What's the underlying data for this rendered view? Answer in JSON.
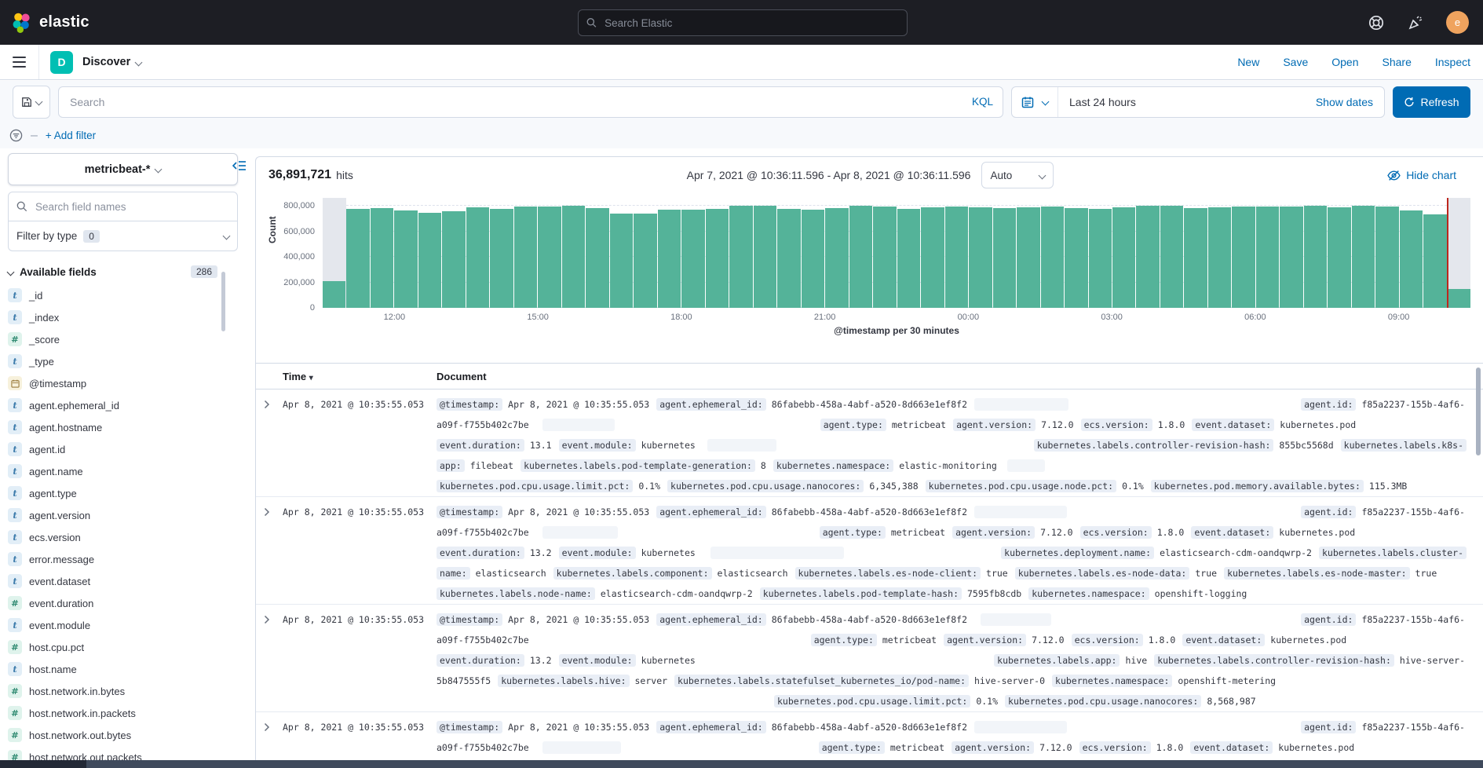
{
  "colors": {
    "accent": "#006bb4",
    "bar": "#54b399",
    "time_marker": "#bd271e",
    "app_badge": "#00bfb3",
    "avatar": "#efa35e"
  },
  "header": {
    "brand": "elastic",
    "search_placeholder": "Search Elastic",
    "avatar_initial": "e"
  },
  "nav": {
    "app_badge": "D",
    "title": "Discover",
    "actions": {
      "new": "New",
      "save": "Save",
      "open": "Open",
      "share": "Share",
      "inspect": "Inspect"
    }
  },
  "querybar": {
    "search_placeholder": "Search",
    "kql_label": "KQL",
    "time_range": "Last 24 hours",
    "show_dates_label": "Show dates",
    "refresh_label": "Refresh"
  },
  "filterbar": {
    "add_filter_label": "+ Add filter"
  },
  "sidebar": {
    "index_pattern": "metricbeat-*",
    "field_search_placeholder": "Search field names",
    "filter_by_type_label": "Filter by type",
    "filter_by_type_count": "0",
    "available_fields_label": "Available fields",
    "available_fields_count": "286",
    "fields": [
      {
        "name": "_id",
        "type": "string"
      },
      {
        "name": "_index",
        "type": "string"
      },
      {
        "name": "_score",
        "type": "number"
      },
      {
        "name": "_type",
        "type": "string"
      },
      {
        "name": "@timestamp",
        "type": "date"
      },
      {
        "name": "agent.ephemeral_id",
        "type": "string"
      },
      {
        "name": "agent.hostname",
        "type": "string"
      },
      {
        "name": "agent.id",
        "type": "string"
      },
      {
        "name": "agent.name",
        "type": "string"
      },
      {
        "name": "agent.type",
        "type": "string"
      },
      {
        "name": "agent.version",
        "type": "string"
      },
      {
        "name": "ecs.version",
        "type": "string"
      },
      {
        "name": "error.message",
        "type": "string"
      },
      {
        "name": "event.dataset",
        "type": "string"
      },
      {
        "name": "event.duration",
        "type": "number"
      },
      {
        "name": "event.module",
        "type": "string"
      },
      {
        "name": "host.cpu.pct",
        "type": "number"
      },
      {
        "name": "host.name",
        "type": "string"
      },
      {
        "name": "host.network.in.bytes",
        "type": "number"
      },
      {
        "name": "host.network.in.packets",
        "type": "number"
      },
      {
        "name": "host.network.out.bytes",
        "type": "number"
      },
      {
        "name": "host.network.out.packets",
        "type": "number"
      }
    ]
  },
  "results": {
    "hits_value": "36,891,721",
    "hits_label": "hits",
    "date_range": "Apr 7, 2021 @ 10:36:11.596 - Apr 8, 2021 @ 10:36:11.596",
    "interval_label": "Auto",
    "hide_chart_label": "Hide chart"
  },
  "chart_data": {
    "type": "bar",
    "ylabel": "Count",
    "caption": "@timestamp per 30 minutes",
    "bucket_interval": "30 minutes",
    "ylim": [
      0,
      862000
    ],
    "yticks": [
      0,
      200000,
      400000,
      600000,
      800000
    ],
    "ytick_labels": [
      "0",
      "200,000",
      "400,000",
      "600,000",
      "800,000"
    ],
    "xtick_labels": [
      "12:00",
      "15:00",
      "18:00",
      "21:00",
      "00:00",
      "03:00",
      "06:00",
      "09:00"
    ],
    "xtick_buckets": [
      3,
      9,
      15,
      21,
      27,
      33,
      39,
      45
    ],
    "values": [
      210000,
      775000,
      781000,
      762000,
      747000,
      757000,
      791000,
      778000,
      793000,
      795000,
      801000,
      783000,
      741000,
      737000,
      768000,
      772000,
      778000,
      801000,
      800000,
      777000,
      772000,
      782000,
      800000,
      796000,
      778000,
      788000,
      795000,
      790000,
      783000,
      786000,
      793000,
      781000,
      776000,
      790000,
      800000,
      798000,
      781000,
      788000,
      796000,
      792000,
      795000,
      798000,
      790000,
      800000,
      793000,
      762000,
      730000,
      150000
    ],
    "incomplete_buckets": [
      0,
      47
    ],
    "current_time_marker_bucket": 47
  },
  "table": {
    "time_header": "Time",
    "document_header": "Document",
    "rows": [
      {
        "time": "Apr 8, 2021 @ 10:35:55.053",
        "lines": [
          {
            "segs": [
              [
                "c",
                "@timestamp:"
              ],
              [
                "v",
                "Apr 8, 2021 @ 10:35:55.053"
              ],
              [
                "c",
                "agent.ephemeral_id:"
              ],
              [
                "v",
                "86fabebb-458a-4abf-a520-8d663e1ef8f2"
              ],
              [
                "g",
                120
              ],
              [
                "f"
              ],
              [
                "c",
                "agent.id:"
              ],
              [
                "v",
                "f85a2237-155b-4af6-"
              ]
            ]
          },
          {
            "segs": [
              [
                "v",
                "a09f-f755b402c7be"
              ],
              [
                "s",
                8
              ],
              [
                "g",
                92
              ],
              [
                "s",
                255
              ],
              [
                "c",
                "agent.type:"
              ],
              [
                "v",
                "metricbeat"
              ],
              [
                "c",
                "agent.version:"
              ],
              [
                "v",
                "7.12.0"
              ],
              [
                "c",
                "ecs.version:"
              ],
              [
                "v",
                "1.8.0"
              ],
              [
                "c",
                "event.dataset:"
              ],
              [
                "v",
                "kubernetes.pod"
              ]
            ]
          },
          {
            "segs": [
              [
                "c",
                "event.duration:"
              ],
              [
                "v",
                "13.1"
              ],
              [
                "c",
                "event.module:"
              ],
              [
                "v",
                "kubernetes"
              ],
              [
                "s",
                6
              ],
              [
                "g",
                88
              ],
              [
                "f"
              ],
              [
                "c",
                "kubernetes.labels.controller-revision-hash:"
              ],
              [
                "v",
                "855bc5568d"
              ],
              [
                "c",
                "kubernetes.labels.k8s-"
              ]
            ]
          },
          {
            "segs": [
              [
                "c",
                "app:"
              ],
              [
                "v",
                "filebeat"
              ],
              [
                "c",
                "kubernetes.labels.pod-template-generation:"
              ],
              [
                "v",
                "8"
              ],
              [
                "c",
                "kubernetes.namespace:"
              ],
              [
                "v",
                "elastic-monitoring"
              ],
              [
                "s",
                4
              ],
              [
                "g",
                48
              ]
            ]
          },
          {
            "segs": [
              [
                "c",
                "kubernetes.pod.cpu.usage.limit.pct:"
              ],
              [
                "v",
                "0.1%"
              ],
              [
                "c",
                "kubernetes.pod.cpu.usage.nanocores:"
              ],
              [
                "v",
                "6,345,388"
              ],
              [
                "c",
                "kubernetes.pod.cpu.usage.node.pct:"
              ],
              [
                "v",
                "0.1%"
              ],
              [
                "c",
                "kubernetes.pod.memory.available.bytes:"
              ],
              [
                "v",
                "115.3MB"
              ]
            ]
          }
        ]
      },
      {
        "time": "Apr 8, 2021 @ 10:35:55.053",
        "lines": [
          {
            "segs": [
              [
                "c",
                "@timestamp:"
              ],
              [
                "v",
                "Apr 8, 2021 @ 10:35:55.053"
              ],
              [
                "c",
                "agent.ephemeral_id:"
              ],
              [
                "v",
                "86fabebb-458a-4abf-a520-8d663e1ef8f2"
              ],
              [
                "g",
                118
              ],
              [
                "f"
              ],
              [
                "c",
                "agent.id:"
              ],
              [
                "v",
                "f85a2237-155b-4af6-"
              ]
            ]
          },
          {
            "segs": [
              [
                "v",
                "a09f-f755b402c7be"
              ],
              [
                "s",
                8
              ],
              [
                "g",
                96
              ],
              [
                "s",
                250
              ],
              [
                "c",
                "agent.type:"
              ],
              [
                "v",
                "metricbeat"
              ],
              [
                "c",
                "agent.version:"
              ],
              [
                "v",
                "7.12.0"
              ],
              [
                "c",
                "ecs.version:"
              ],
              [
                "v",
                "1.8.0"
              ],
              [
                "c",
                "event.dataset:"
              ],
              [
                "v",
                "kubernetes.pod"
              ]
            ]
          },
          {
            "segs": [
              [
                "c",
                "event.duration:"
              ],
              [
                "v",
                "13.2"
              ],
              [
                "c",
                "event.module:"
              ],
              [
                "v",
                "kubernetes"
              ],
              [
                "s",
                10
              ],
              [
                "g",
                170
              ],
              [
                "f"
              ],
              [
                "c",
                "kubernetes.deployment.name:"
              ],
              [
                "v",
                "elasticsearch-cdm-oandqwrp-2"
              ],
              [
                "c",
                "kubernetes.labels.cluster-"
              ]
            ]
          },
          {
            "segs": [
              [
                "c",
                "name:"
              ],
              [
                "v",
                "elasticsearch"
              ],
              [
                "c",
                "kubernetes.labels.component:"
              ],
              [
                "v",
                "elasticsearch"
              ],
              [
                "c",
                "kubernetes.labels.es-node-client:"
              ],
              [
                "v",
                "true"
              ],
              [
                "c",
                "kubernetes.labels.es-node-data:"
              ],
              [
                "v",
                "true"
              ],
              [
                "c",
                "kubernetes.labels.es-node-master:"
              ],
              [
                "v",
                "true"
              ]
            ]
          },
          {
            "segs": [
              [
                "c",
                "kubernetes.labels.node-name:"
              ],
              [
                "v",
                "elasticsearch-cdm-oandqwrp-2"
              ],
              [
                "c",
                "kubernetes.labels.pod-template-hash:"
              ],
              [
                "v",
                "7595fb8cdb"
              ],
              [
                "c",
                "kubernetes.namespace:"
              ],
              [
                "v",
                "openshift-logging"
              ]
            ]
          }
        ]
      },
      {
        "time": "Apr 8, 2021 @ 10:35:55.053",
        "lines": [
          {
            "segs": [
              [
                "c",
                "@timestamp:"
              ],
              [
                "v",
                "Apr 8, 2021 @ 10:35:55.053"
              ],
              [
                "c",
                "agent.ephemeral_id:"
              ],
              [
                "v",
                "86fabebb-458a-4abf-a520-8d663e1ef8f2"
              ],
              [
                "s",
                8
              ],
              [
                "g",
                90
              ],
              [
                "f"
              ],
              [
                "c",
                "agent.id:"
              ],
              [
                "v",
                "f85a2237-155b-4af6-"
              ]
            ]
          },
          {
            "segs": [
              [
                "v",
                "a09f-f755b402c7be"
              ],
              [
                "s",
                350
              ],
              [
                "c",
                "agent.type:"
              ],
              [
                "v",
                "metricbeat"
              ],
              [
                "c",
                "agent.version:"
              ],
              [
                "v",
                "7.12.0"
              ],
              [
                "c",
                "ecs.version:"
              ],
              [
                "v",
                "1.8.0"
              ],
              [
                "c",
                "event.dataset:"
              ],
              [
                "v",
                "kubernetes.pod"
              ]
            ]
          },
          {
            "segs": [
              [
                "c",
                "event.duration:"
              ],
              [
                "v",
                "13.2"
              ],
              [
                "c",
                "event.module:"
              ],
              [
                "v",
                "kubernetes"
              ],
              [
                "f"
              ],
              [
                "c",
                "kubernetes.labels.app:"
              ],
              [
                "v",
                "hive"
              ],
              [
                "c",
                "kubernetes.labels.controller-revision-hash:"
              ],
              [
                "v",
                "hive-server-"
              ]
            ]
          },
          {
            "segs": [
              [
                "v",
                "5b847555f5"
              ],
              [
                "c",
                "kubernetes.labels.hive:"
              ],
              [
                "v",
                "server"
              ],
              [
                "c",
                "kubernetes.labels.statefulset_kubernetes_io/pod-name:"
              ],
              [
                "v",
                "hive-server-0"
              ],
              [
                "c",
                "kubernetes.namespace:"
              ],
              [
                "v",
                "openshift-metering"
              ]
            ]
          },
          {
            "segs": [
              [
                "s",
                430
              ],
              [
                "c",
                "kubernetes.pod.cpu.usage.limit.pct:"
              ],
              [
                "v",
                "0.1%"
              ],
              [
                "c",
                "kubernetes.pod.cpu.usage.nanocores:"
              ],
              [
                "v",
                "8,568,987"
              ]
            ]
          }
        ]
      },
      {
        "time": "Apr 8, 2021 @ 10:35:55.053",
        "lines": [
          {
            "segs": [
              [
                "c",
                "@timestamp:"
              ],
              [
                "v",
                "Apr 8, 2021 @ 10:35:55.053"
              ],
              [
                "c",
                "agent.ephemeral_id:"
              ],
              [
                "v",
                "86fabebb-458a-4abf-a520-8d663e1ef8f2"
              ],
              [
                "g",
                118
              ],
              [
                "f"
              ],
              [
                "c",
                "agent.id:"
              ],
              [
                "v",
                "f85a2237-155b-4af6-"
              ]
            ]
          },
          {
            "segs": [
              [
                "v",
                "a09f-f755b402c7be"
              ],
              [
                "s",
                8
              ],
              [
                "g",
                100
              ],
              [
                "s",
                245
              ],
              [
                "c",
                "agent.type:"
              ],
              [
                "v",
                "metricbeat"
              ],
              [
                "c",
                "agent.version:"
              ],
              [
                "v",
                "7.12.0"
              ],
              [
                "c",
                "ecs.version:"
              ],
              [
                "v",
                "1.8.0"
              ],
              [
                "c",
                "event.dataset:"
              ],
              [
                "v",
                "kubernetes.pod"
              ]
            ]
          },
          {
            "segs": [
              [
                "g",
                80
              ],
              [
                "s",
                20
              ],
              [
                "g",
                60
              ],
              [
                "s",
                35
              ],
              [
                "g",
                110
              ],
              [
                "s",
                45
              ],
              [
                "g",
                85
              ],
              [
                "s",
                55
              ],
              [
                "g",
                60
              ],
              [
                "s",
                110
              ],
              [
                "g",
                120
              ],
              [
                "s",
                35
              ],
              [
                "g",
                90
              ],
              [
                "s",
                70
              ],
              [
                "g",
                95
              ]
            ]
          }
        ]
      }
    ]
  }
}
